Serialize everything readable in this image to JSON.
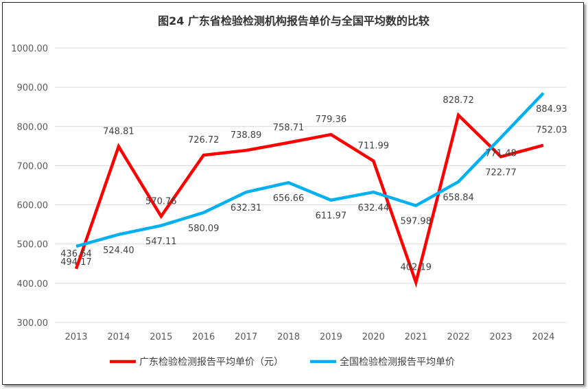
{
  "chart_data": {
    "type": "line",
    "title": "图24  广东省检验检测机构报告单价与全国平均数的比较",
    "categories": [
      "2013",
      "2014",
      "2015",
      "2016",
      "2017",
      "2018",
      "2019",
      "2020",
      "2021",
      "2022",
      "2023",
      "2024"
    ],
    "series": [
      {
        "name": "广东检验检测报告平均单价（元）",
        "color": "#ff0000",
        "values": [
          436.64,
          748.81,
          570.76,
          726.72,
          738.89,
          758.71,
          779.36,
          711.99,
          402.19,
          828.72,
          722.77,
          752.03
        ]
      },
      {
        "name": "全国检验检测报告平均单价",
        "color": "#00b0f0",
        "values": [
          494.17,
          524.4,
          547.11,
          580.09,
          632.31,
          656.66,
          611.97,
          632.44,
          597.98,
          658.84,
          771.48,
          884.93
        ]
      }
    ],
    "ylim": [
      300,
      1000
    ],
    "yticks": [
      "300.00",
      "400.00",
      "500.00",
      "600.00",
      "700.00",
      "800.00",
      "900.00",
      "1000.00"
    ],
    "grid": true,
    "legend": "bottom"
  }
}
